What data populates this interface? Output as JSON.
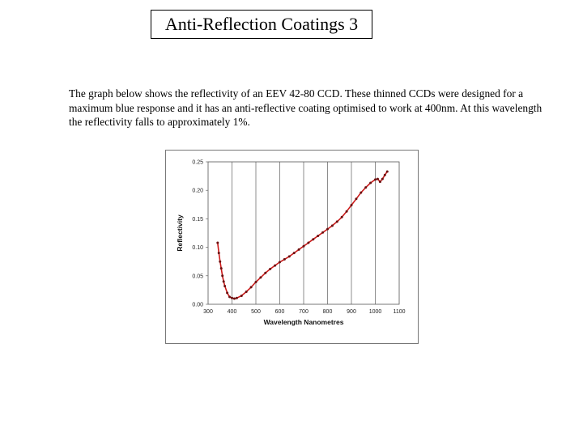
{
  "slide": {
    "title": "Anti-Reflection Coatings 3",
    "description": "The graph below shows the reflectivity of an EEV 42-80 CCD. These thinned CCDs were designed for a maximum blue response and it has an anti-reflective coating  optimised to work at 400nm. At this wavelength the reflectivity falls to approximately 1%."
  },
  "chart_data": {
    "type": "line",
    "title": "",
    "xlabel": "Wavelength Nanometres",
    "ylabel": "Reflectivity",
    "xlim": [
      300,
      1100
    ],
    "ylim": [
      0,
      0.25
    ],
    "x_ticks": [
      "300",
      "400",
      "500",
      "600",
      "700",
      "800",
      "900",
      "1000",
      "1100"
    ],
    "y_ticks": [
      "0.25",
      "0.20",
      "0.15",
      "0.10",
      "0.05",
      "0.00"
    ],
    "grid": "vertical",
    "legend": "none",
    "series_color": "#cc1a1a",
    "marker_color": "#6b1010",
    "series": [
      {
        "x": [
          340,
          345,
          350,
          355,
          360,
          365,
          370,
          380,
          390,
          400,
          410,
          420,
          440,
          460,
          480,
          500,
          520,
          540,
          560,
          580,
          600,
          620,
          640,
          660,
          680,
          700,
          720,
          740,
          760,
          780,
          800,
          820,
          840,
          860,
          880,
          900,
          920,
          940,
          960,
          980,
          1000,
          1010,
          1020,
          1030,
          1040,
          1050
        ],
        "y": [
          0.108,
          0.09,
          0.075,
          0.063,
          0.05,
          0.04,
          0.032,
          0.02,
          0.013,
          0.011,
          0.01,
          0.011,
          0.015,
          0.022,
          0.03,
          0.039,
          0.047,
          0.055,
          0.062,
          0.068,
          0.074,
          0.079,
          0.084,
          0.09,
          0.096,
          0.102,
          0.108,
          0.114,
          0.12,
          0.126,
          0.132,
          0.138,
          0.145,
          0.153,
          0.163,
          0.174,
          0.185,
          0.196,
          0.205,
          0.213,
          0.219,
          0.22,
          0.215,
          0.22,
          0.227,
          0.233
        ]
      }
    ]
  }
}
